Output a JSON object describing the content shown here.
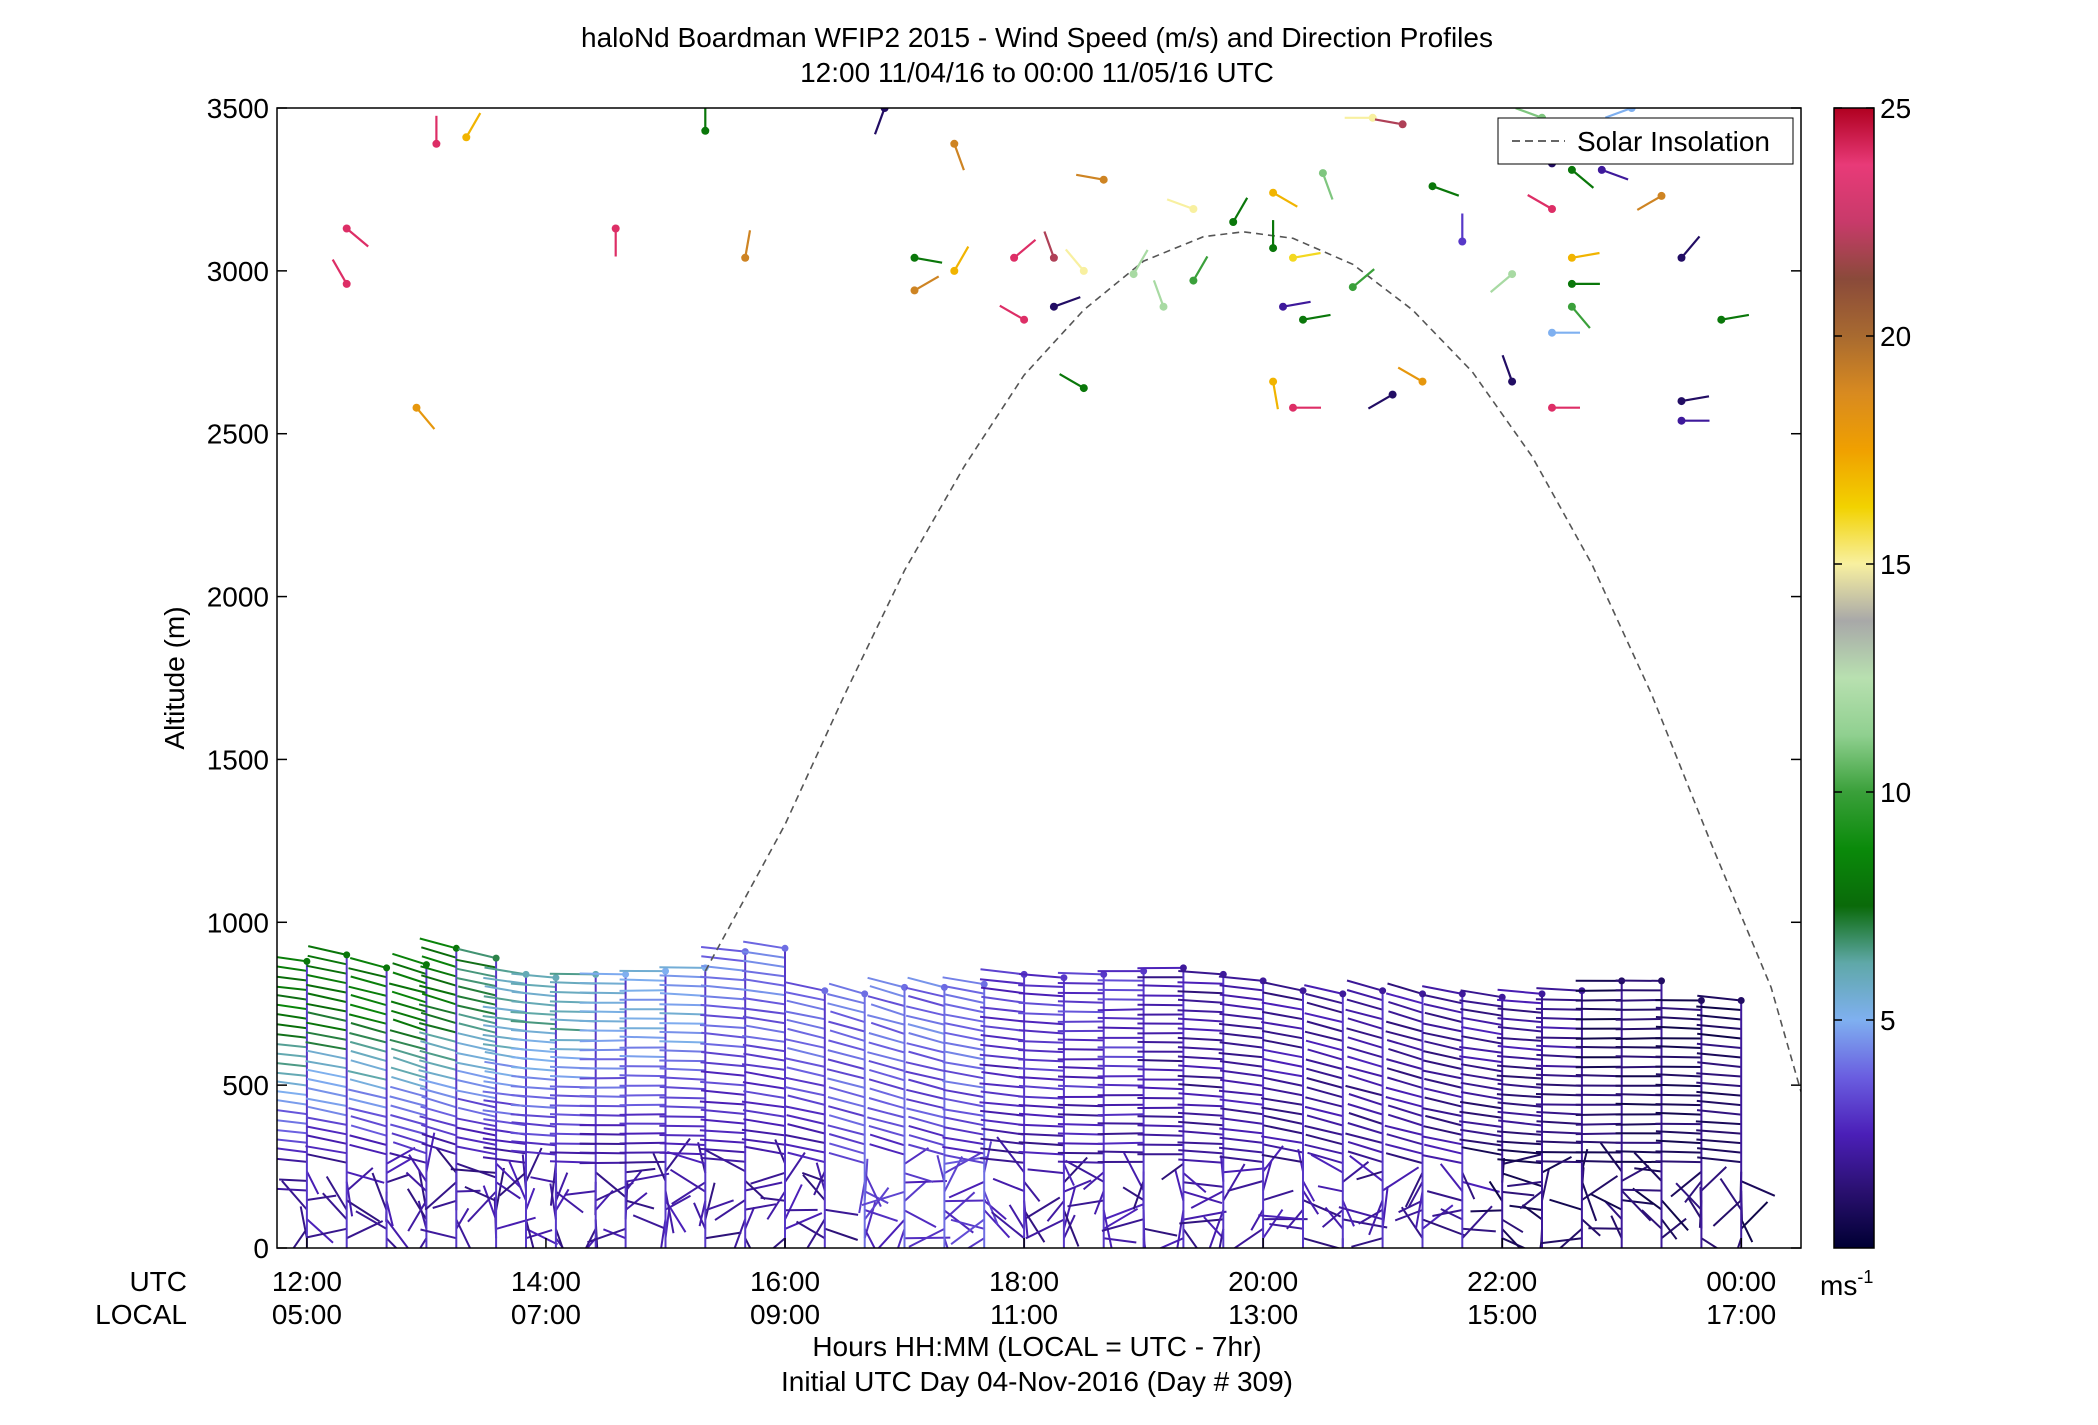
{
  "chart_data": {
    "type": "scatter",
    "title": "haloNd Boardman WFIP2 2015 - Wind Speed (m/s) and Direction Profiles",
    "subtitle": "12:00 11/04/16 to 00:00 11/05/16  UTC",
    "ylabel": "Altitude (m)",
    "ylim": [
      0,
      3500
    ],
    "yticks": [
      "0",
      "500",
      "1000",
      "1500",
      "2000",
      "2500",
      "3000",
      "3500"
    ],
    "xlim": [
      "11:45",
      "00:30"
    ],
    "x_row_label_utc": "UTC",
    "x_row_label_local": "LOCAL",
    "xticks_utc": [
      "12:00",
      "14:00",
      "16:00",
      "18:00",
      "20:00",
      "22:00",
      "00:00"
    ],
    "xticks_local": [
      "05:00",
      "07:00",
      "09:00",
      "11:00",
      "13:00",
      "15:00",
      "17:00"
    ],
    "xlabel": "Hours HH:MM  (LOCAL = UTC - 7hr)",
    "xlabel2": "Initial UTC Day 04-Nov-2016 (Day # 309)",
    "legend": {
      "label": "Solar Insolation",
      "position": "top-right",
      "style": "dashed gray"
    },
    "colorbar": {
      "range": [
        0,
        25
      ],
      "ticks": [
        "5",
        "10",
        "15",
        "20",
        "25"
      ],
      "unit": "ms",
      "unit_exp": "-1",
      "colors": [
        "#000033",
        "#2a1070",
        "#4b1fb8",
        "#6a5ee0",
        "#7fb0f0",
        "#5fa8a8",
        "#0a6a0a",
        "#0a8a0a",
        "#3aa03a",
        "#90d090",
        "#b8e0b0",
        "#a8a8a8",
        "#f8f0a0",
        "#f2d200",
        "#f0a000",
        "#d88a20",
        "#a86a30",
        "#8a4a3a",
        "#c83a6a",
        "#e83a78",
        "#b00020"
      ]
    },
    "solar_insolation_curve": {
      "peak_time": "19:50",
      "peak_altitude": 3120,
      "points": [
        {
          "time": "15:20",
          "altitude": 850
        },
        {
          "time": "16:00",
          "altitude": 1300
        },
        {
          "time": "16:30",
          "altitude": 1700
        },
        {
          "time": "17:00",
          "altitude": 2080
        },
        {
          "time": "17:30",
          "altitude": 2400
        },
        {
          "time": "18:00",
          "altitude": 2680
        },
        {
          "time": "18:30",
          "altitude": 2880
        },
        {
          "time": "19:00",
          "altitude": 3030
        },
        {
          "time": "19:30",
          "altitude": 3105
        },
        {
          "time": "19:50",
          "altitude": 3120
        },
        {
          "time": "20:15",
          "altitude": 3100
        },
        {
          "time": "20:45",
          "altitude": 3020
        },
        {
          "time": "21:15",
          "altitude": 2880
        },
        {
          "time": "21:45",
          "altitude": 2690
        },
        {
          "time": "22:15",
          "altitude": 2430
        },
        {
          "time": "22:45",
          "altitude": 2100
        },
        {
          "time": "23:15",
          "altitude": 1700
        },
        {
          "time": "23:45",
          "altitude": 1240
        },
        {
          "time": "00:15",
          "altitude": 800
        },
        {
          "time": "00:30",
          "altitude": 480
        }
      ]
    },
    "profiles": [
      {
        "time": "12:00",
        "top": 880,
        "upper_speed": 8,
        "lower_speed": 2
      },
      {
        "time": "12:20",
        "top": 900,
        "upper_speed": 8,
        "lower_speed": 2
      },
      {
        "time": "12:40",
        "top": 860,
        "upper_speed": 8,
        "lower_speed": 2
      },
      {
        "time": "13:00",
        "top": 870,
        "upper_speed": 8,
        "lower_speed": 2
      },
      {
        "time": "13:15",
        "top": 920,
        "upper_speed": 8,
        "lower_speed": 2
      },
      {
        "time": "13:35",
        "top": 890,
        "upper_speed": 7,
        "lower_speed": 2
      },
      {
        "time": "13:50",
        "top": 840,
        "upper_speed": 6,
        "lower_speed": 2
      },
      {
        "time": "14:05",
        "top": 830,
        "upper_speed": 6,
        "lower_speed": 2
      },
      {
        "time": "14:25",
        "top": 840,
        "upper_speed": 6,
        "lower_speed": 2
      },
      {
        "time": "14:40",
        "top": 840,
        "upper_speed": 5,
        "lower_speed": 2
      },
      {
        "time": "15:00",
        "top": 850,
        "upper_speed": 5,
        "lower_speed": 2
      },
      {
        "time": "15:20",
        "top": 860,
        "upper_speed": 5,
        "lower_speed": 2
      },
      {
        "time": "15:40",
        "top": 910,
        "upper_speed": 4,
        "lower_speed": 2
      },
      {
        "time": "16:00",
        "top": 920,
        "upper_speed": 4,
        "lower_speed": 2
      },
      {
        "time": "16:20",
        "top": 790,
        "upper_speed": 4,
        "lower_speed": 2
      },
      {
        "time": "16:40",
        "top": 780,
        "upper_speed": 4,
        "lower_speed": 3
      },
      {
        "time": "17:00",
        "top": 800,
        "upper_speed": 4,
        "lower_speed": 3
      },
      {
        "time": "17:20",
        "top": 800,
        "upper_speed": 4,
        "lower_speed": 3
      },
      {
        "time": "17:40",
        "top": 810,
        "upper_speed": 4,
        "lower_speed": 3
      },
      {
        "time": "18:00",
        "top": 840,
        "upper_speed": 3,
        "lower_speed": 2
      },
      {
        "time": "18:20",
        "top": 830,
        "upper_speed": 3,
        "lower_speed": 2
      },
      {
        "time": "18:40",
        "top": 840,
        "upper_speed": 3,
        "lower_speed": 2
      },
      {
        "time": "19:00",
        "top": 850,
        "upper_speed": 3,
        "lower_speed": 2
      },
      {
        "time": "19:20",
        "top": 860,
        "upper_speed": 2,
        "lower_speed": 2
      },
      {
        "time": "19:40",
        "top": 840,
        "upper_speed": 2,
        "lower_speed": 2
      },
      {
        "time": "20:00",
        "top": 820,
        "upper_speed": 2,
        "lower_speed": 2
      },
      {
        "time": "20:20",
        "top": 790,
        "upper_speed": 2,
        "lower_speed": 2
      },
      {
        "time": "20:40",
        "top": 780,
        "upper_speed": 2,
        "lower_speed": 2
      },
      {
        "time": "21:00",
        "top": 790,
        "upper_speed": 2,
        "lower_speed": 2
      },
      {
        "time": "21:20",
        "top": 780,
        "upper_speed": 2,
        "lower_speed": 2
      },
      {
        "time": "21:40",
        "top": 780,
        "upper_speed": 2,
        "lower_speed": 2
      },
      {
        "time": "22:00",
        "top": 770,
        "upper_speed": 2,
        "lower_speed": 1
      },
      {
        "time": "22:20",
        "top": 780,
        "upper_speed": 2,
        "lower_speed": 1
      },
      {
        "time": "22:40",
        "top": 790,
        "upper_speed": 2,
        "lower_speed": 1
      },
      {
        "time": "23:00",
        "top": 820,
        "upper_speed": 1,
        "lower_speed": 1
      },
      {
        "time": "23:20",
        "top": 820,
        "upper_speed": 1,
        "lower_speed": 1
      },
      {
        "time": "23:40",
        "top": 760,
        "upper_speed": 1,
        "lower_speed": 1
      },
      {
        "time": "00:00",
        "top": 760,
        "upper_speed": 1,
        "lower_speed": 1
      }
    ],
    "upper_barbs": [
      {
        "time": "12:20",
        "altitude": 3130,
        "speed": 24,
        "dir": 130
      },
      {
        "time": "12:20",
        "altitude": 2960,
        "speed": 24,
        "dir": 330
      },
      {
        "time": "12:55",
        "altitude": 2580,
        "speed": 18,
        "dir": 140
      },
      {
        "time": "13:05",
        "altitude": 3390,
        "speed": 24,
        "dir": 0
      },
      {
        "time": "13:20",
        "altitude": 3410,
        "speed": 17,
        "dir": 30
      },
      {
        "time": "14:35",
        "altitude": 3130,
        "speed": 24,
        "dir": 180
      },
      {
        "time": "15:20",
        "altitude": 3430,
        "speed": 8,
        "dir": 0
      },
      {
        "time": "15:40",
        "altitude": 3040,
        "speed": 19,
        "dir": 10
      },
      {
        "time": "16:50",
        "altitude": 3500,
        "speed": 1,
        "dir": 200
      },
      {
        "time": "17:05",
        "altitude": 3040,
        "speed": 8,
        "dir": 100
      },
      {
        "time": "17:05",
        "altitude": 2940,
        "speed": 19,
        "dir": 60
      },
      {
        "time": "17:25",
        "altitude": 3000,
        "speed": 17,
        "dir": 30
      },
      {
        "time": "17:25",
        "altitude": 3390,
        "speed": 19,
        "dir": 160
      },
      {
        "time": "17:55",
        "altitude": 3040,
        "speed": 24,
        "dir": 50
      },
      {
        "time": "18:00",
        "altitude": 2850,
        "speed": 24,
        "dir": 300
      },
      {
        "time": "18:15",
        "altitude": 3040,
        "speed": 22,
        "dir": 340
      },
      {
        "time": "18:15",
        "altitude": 2890,
        "speed": 1,
        "dir": 70
      },
      {
        "time": "18:30",
        "altitude": 2640,
        "speed": 8,
        "dir": 300
      },
      {
        "time": "18:30",
        "altitude": 3000,
        "speed": 15,
        "dir": 320
      },
      {
        "time": "18:40",
        "altitude": 3280,
        "speed": 19,
        "dir": 280
      },
      {
        "time": "18:55",
        "altitude": 2990,
        "speed": 12,
        "dir": 30
      },
      {
        "time": "19:10",
        "altitude": 2890,
        "speed": 12,
        "dir": 340
      },
      {
        "time": "19:25",
        "altitude": 2970,
        "speed": 10,
        "dir": 30
      },
      {
        "time": "19:25",
        "altitude": 3190,
        "speed": 15,
        "dir": 290
      },
      {
        "time": "19:45",
        "altitude": 3150,
        "speed": 8,
        "dir": 30
      },
      {
        "time": "20:05",
        "altitude": 3240,
        "speed": 17,
        "dir": 120
      },
      {
        "time": "20:05",
        "altitude": 3070,
        "speed": 8,
        "dir": 0
      },
      {
        "time": "20:05",
        "altitude": 2660,
        "speed": 17,
        "dir": 170
      },
      {
        "time": "20:10",
        "altitude": 2890,
        "speed": 2,
        "dir": 80
      },
      {
        "time": "20:15",
        "altitude": 2580,
        "speed": 24,
        "dir": 90
      },
      {
        "time": "20:15",
        "altitude": 3040,
        "speed": 16,
        "dir": 80
      },
      {
        "time": "20:20",
        "altitude": 2850,
        "speed": 8,
        "dir": 80
      },
      {
        "time": "20:30",
        "altitude": 3300,
        "speed": 11,
        "dir": 160
      },
      {
        "time": "20:45",
        "altitude": 2950,
        "speed": 10,
        "dir": 50
      },
      {
        "time": "20:55",
        "altitude": 3470,
        "speed": 15,
        "dir": 270
      },
      {
        "time": "21:05",
        "altitude": 2620,
        "speed": 1,
        "dir": 240
      },
      {
        "time": "21:10",
        "altitude": 3450,
        "speed": 22,
        "dir": 280
      },
      {
        "time": "21:20",
        "altitude": 2660,
        "speed": 18,
        "dir": 300
      },
      {
        "time": "21:25",
        "altitude": 3260,
        "speed": 8,
        "dir": 110
      },
      {
        "time": "21:40",
        "altitude": 3090,
        "speed": 3,
        "dir": 0
      },
      {
        "time": "22:05",
        "altitude": 2990,
        "speed": 12,
        "dir": 230
      },
      {
        "time": "22:05",
        "altitude": 2660,
        "speed": 1,
        "dir": 340
      },
      {
        "time": "22:20",
        "altitude": 3470,
        "speed": 11,
        "dir": 290
      },
      {
        "time": "22:25",
        "altitude": 3330,
        "speed": 1,
        "dir": 70
      },
      {
        "time": "22:25",
        "altitude": 3190,
        "speed": 24,
        "dir": 300
      },
      {
        "time": "22:25",
        "altitude": 2810,
        "speed": 5,
        "dir": 90
      },
      {
        "time": "22:25",
        "altitude": 2580,
        "speed": 24,
        "dir": 90
      },
      {
        "time": "22:35",
        "altitude": 3040,
        "speed": 17,
        "dir": 80
      },
      {
        "time": "22:35",
        "altitude": 3310,
        "speed": 8,
        "dir": 130
      },
      {
        "time": "22:35",
        "altitude": 2960,
        "speed": 8,
        "dir": 90
      },
      {
        "time": "22:35",
        "altitude": 2890,
        "speed": 10,
        "dir": 140
      },
      {
        "time": "22:50",
        "altitude": 3310,
        "speed": 2,
        "dir": 110
      },
      {
        "time": "23:05",
        "altitude": 3500,
        "speed": 5,
        "dir": 250
      },
      {
        "time": "23:20",
        "altitude": 3230,
        "speed": 19,
        "dir": 240
      },
      {
        "time": "23:30",
        "altitude": 3040,
        "speed": 1,
        "dir": 40
      },
      {
        "time": "23:30",
        "altitude": 2600,
        "speed": 1,
        "dir": 80
      },
      {
        "time": "23:30",
        "altitude": 2540,
        "speed": 2,
        "dir": 90
      },
      {
        "time": "23:50",
        "altitude": 2850,
        "speed": 8,
        "dir": 80
      }
    ]
  }
}
